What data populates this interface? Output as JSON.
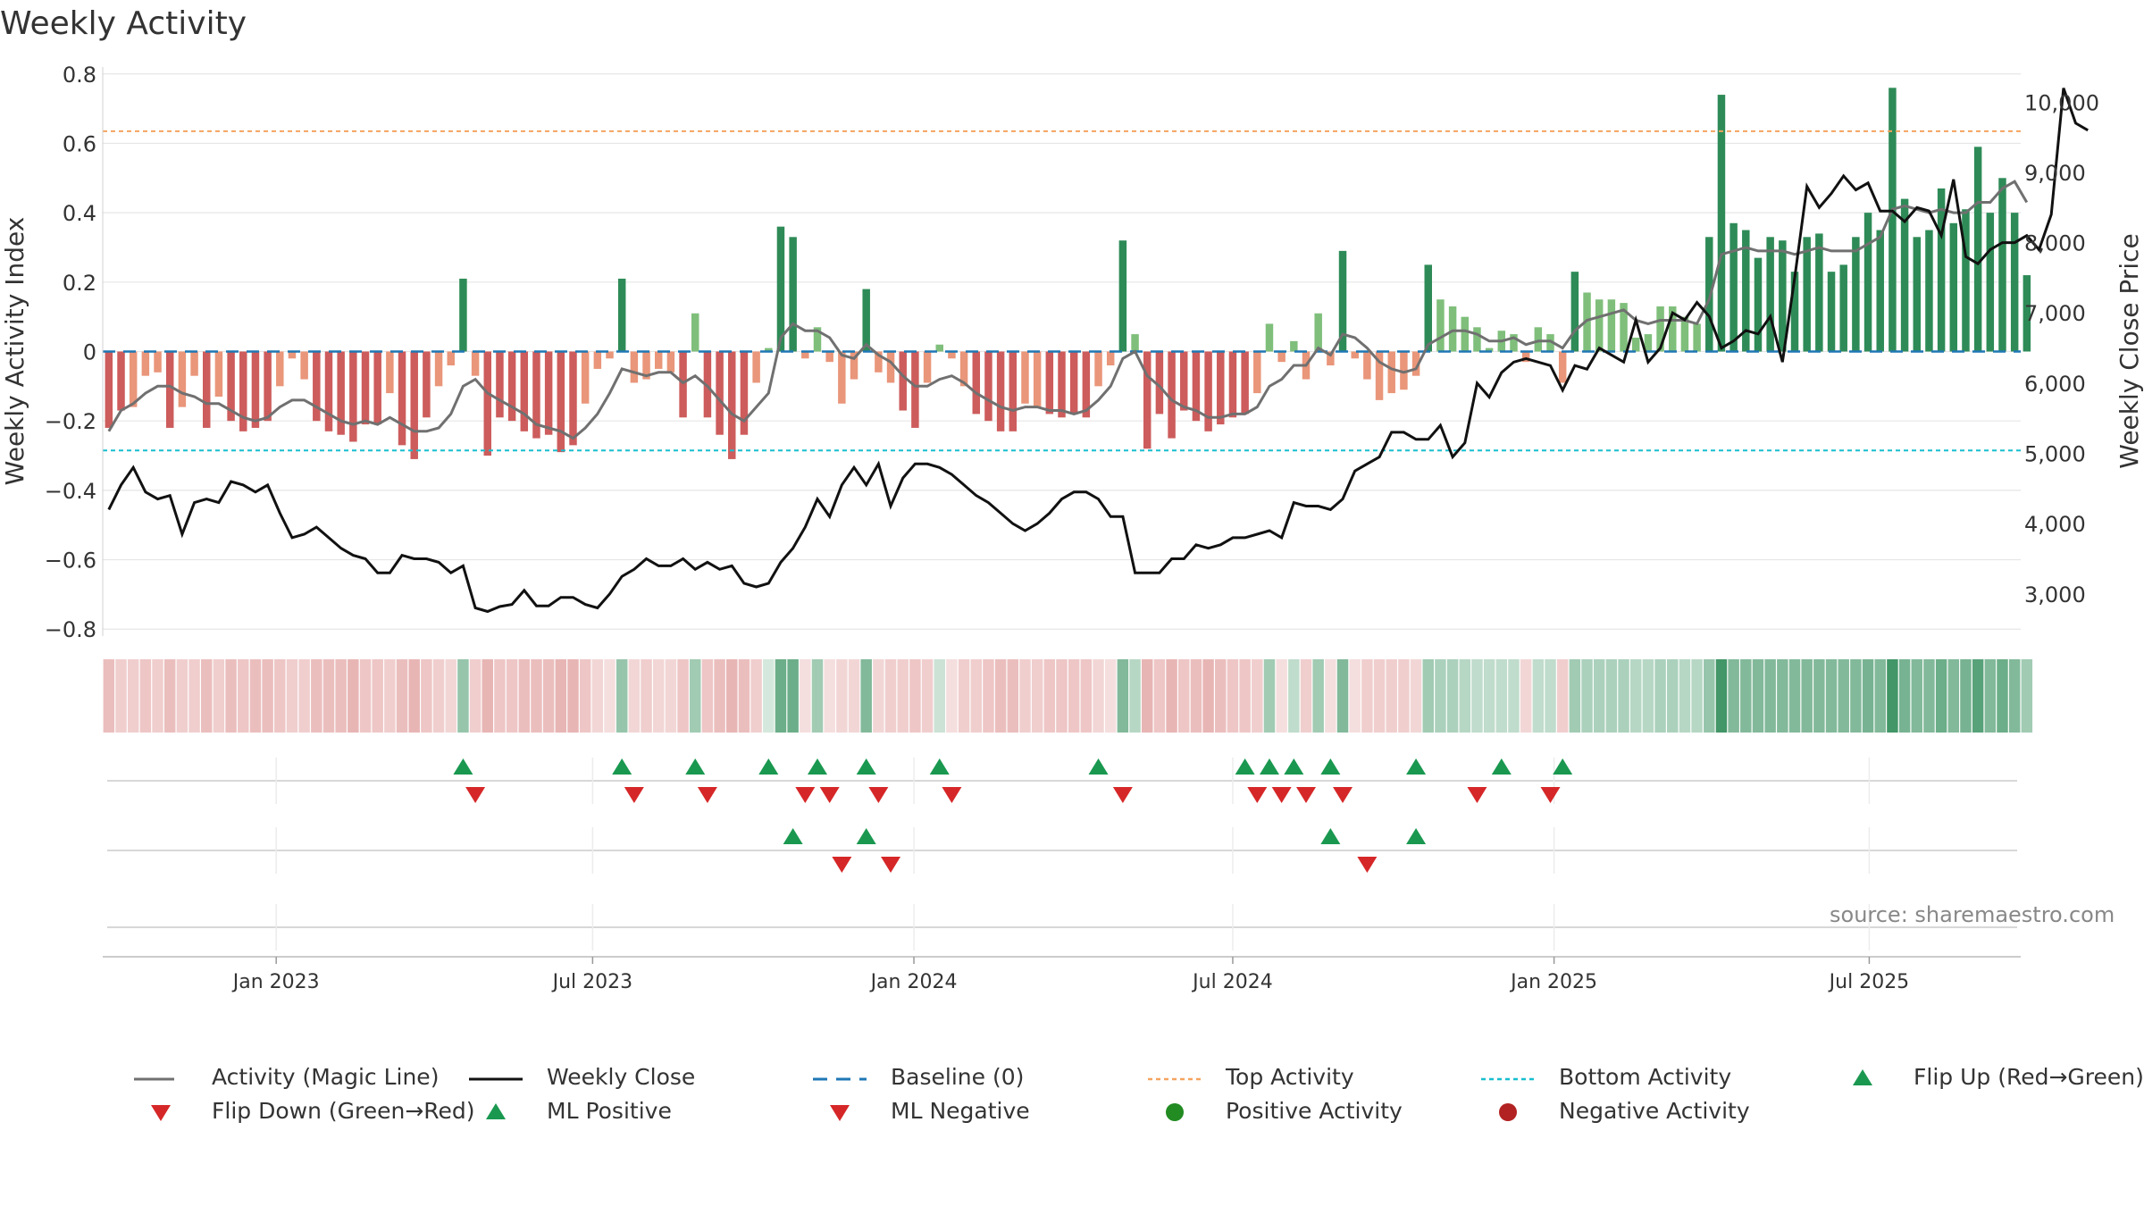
{
  "title": "Weekly Activity",
  "source": "source: sharemaestro.com",
  "colors": {
    "bar_pos_strong": "#2e8b57",
    "bar_pos_weak": "#7fbf7b",
    "bar_neg_strong": "#cd5c5c",
    "bar_neg_weak": "#e9967a",
    "magic_line": "#707070",
    "close_line": "#111111",
    "baseline": "#1f77b4",
    "top": "#f4a460",
    "bottom": "#17becf",
    "flip_up": "#1a9850",
    "flip_down": "#d62728",
    "pos_dot": "#228b22",
    "neg_dot": "#b22222"
  },
  "chart_data": {
    "type": "bar",
    "title": "Weekly Activity",
    "ylabel": "Weekly Activity Index",
    "y2label": "Weekly Close Price",
    "ylim": [
      -0.82,
      0.82
    ],
    "y2lim": [
      2400,
      10500
    ],
    "yticks": [
      "0.8",
      "0.6",
      "0.4",
      "0.2",
      "0",
      "−0.2",
      "−0.4",
      "−0.6",
      "−0.8"
    ],
    "ytick_values": [
      0.8,
      0.6,
      0.4,
      0.2,
      0,
      -0.2,
      -0.4,
      -0.6,
      -0.8
    ],
    "y2ticks": [
      "10,000",
      "9,000",
      "8,000",
      "7,000",
      "6,000",
      "5,000",
      "4,000",
      "3,000"
    ],
    "y2tick_values": [
      10000,
      9000,
      8000,
      7000,
      6000,
      5000,
      4000,
      3000
    ],
    "xlim_weeks": [
      0,
      157
    ],
    "xticks": [
      {
        "label": "Jan 2023",
        "week": 14.2
      },
      {
        "label": "Jul 2023",
        "week": 40.1
      },
      {
        "label": "Jan 2024",
        "week": 66.4
      },
      {
        "label": "Jul 2024",
        "week": 92.5
      },
      {
        "label": "Jan 2025",
        "week": 118.8
      },
      {
        "label": "Jul 2025",
        "week": 144.6
      }
    ],
    "top_activity": 0.635,
    "bottom_activity": -0.285,
    "baseline": 0,
    "activity": [
      -0.22,
      -0.17,
      -0.16,
      -0.07,
      -0.06,
      -0.22,
      -0.16,
      -0.07,
      -0.22,
      -0.13,
      -0.2,
      -0.23,
      -0.22,
      -0.2,
      -0.1,
      -0.02,
      -0.08,
      -0.2,
      -0.23,
      -0.24,
      -0.26,
      -0.21,
      -0.21,
      -0.12,
      -0.27,
      -0.31,
      -0.19,
      -0.1,
      -0.04,
      0.21,
      -0.07,
      -0.3,
      -0.19,
      -0.2,
      -0.23,
      -0.25,
      -0.24,
      -0.29,
      -0.27,
      -0.15,
      -0.05,
      -0.02,
      0.21,
      -0.09,
      -0.08,
      -0.05,
      -0.06,
      -0.19,
      0.11,
      -0.19,
      -0.24,
      -0.31,
      -0.24,
      -0.09,
      0.01,
      0.36,
      0.33,
      -0.02,
      0.07,
      -0.03,
      -0.15,
      -0.08,
      0.18,
      -0.06,
      -0.09,
      -0.17,
      -0.22,
      -0.09,
      0.02,
      -0.02,
      -0.1,
      -0.18,
      -0.2,
      -0.23,
      -0.23,
      -0.15,
      -0.16,
      -0.18,
      -0.19,
      -0.18,
      -0.19,
      -0.1,
      -0.04,
      0.32,
      0.05,
      -0.28,
      -0.18,
      -0.25,
      -0.17,
      -0.2,
      -0.23,
      -0.21,
      -0.19,
      -0.18,
      -0.12,
      0.08,
      -0.03,
      0.03,
      -0.08,
      0.11,
      -0.04,
      0.29,
      -0.02,
      -0.08,
      -0.14,
      -0.12,
      -0.11,
      -0.07,
      0.25,
      0.15,
      0.13,
      0.1,
      0.07,
      0.01,
      0.06,
      0.05,
      -0.03,
      0.07,
      0.05,
      -0.09,
      0.23,
      0.17,
      0.15,
      0.15,
      0.14,
      0.04,
      0.05,
      0.13,
      0.13,
      0.1,
      0.08,
      0.33,
      0.74,
      0.37,
      0.35,
      0.27,
      0.33,
      0.32,
      0.23,
      0.33,
      0.34,
      0.23,
      0.25,
      0.33,
      0.4,
      0.35,
      0.76,
      0.44,
      0.33,
      0.35,
      0.47,
      0.37,
      0.41,
      0.59,
      0.4,
      0.5,
      0.4,
      0.22
    ],
    "magic_line": [
      -0.23,
      -0.17,
      -0.15,
      -0.12,
      -0.1,
      -0.1,
      -0.12,
      -0.13,
      -0.15,
      -0.15,
      -0.17,
      -0.19,
      -0.2,
      -0.19,
      -0.16,
      -0.14,
      -0.14,
      -0.16,
      -0.18,
      -0.2,
      -0.21,
      -0.2,
      -0.21,
      -0.19,
      -0.21,
      -0.23,
      -0.23,
      -0.22,
      -0.18,
      -0.1,
      -0.08,
      -0.12,
      -0.14,
      -0.16,
      -0.18,
      -0.21,
      -0.22,
      -0.23,
      -0.25,
      -0.22,
      -0.18,
      -0.12,
      -0.05,
      -0.06,
      -0.07,
      -0.06,
      -0.06,
      -0.09,
      -0.07,
      -0.1,
      -0.14,
      -0.18,
      -0.2,
      -0.16,
      -0.12,
      0.04,
      0.08,
      0.06,
      0.06,
      0.04,
      -0.01,
      -0.02,
      0.02,
      -0.01,
      -0.03,
      -0.07,
      -0.1,
      -0.1,
      -0.08,
      -0.07,
      -0.09,
      -0.12,
      -0.14,
      -0.16,
      -0.17,
      -0.16,
      -0.16,
      -0.17,
      -0.17,
      -0.18,
      -0.17,
      -0.14,
      -0.1,
      -0.02,
      0.0,
      -0.07,
      -0.1,
      -0.14,
      -0.16,
      -0.17,
      -0.19,
      -0.19,
      -0.18,
      -0.18,
      -0.16,
      -0.1,
      -0.08,
      -0.04,
      -0.04,
      0.01,
      -0.01,
      0.05,
      0.04,
      0.01,
      -0.03,
      -0.05,
      -0.06,
      -0.05,
      0.02,
      0.04,
      0.06,
      0.06,
      0.05,
      0.03,
      0.03,
      0.04,
      0.02,
      0.03,
      0.03,
      0.01,
      0.06,
      0.09,
      0.1,
      0.11,
      0.12,
      0.09,
      0.08,
      0.09,
      0.09,
      0.09,
      0.08,
      0.15,
      0.28,
      0.29,
      0.3,
      0.29,
      0.29,
      0.29,
      0.28,
      0.29,
      0.3,
      0.29,
      0.29,
      0.29,
      0.31,
      0.33,
      0.41,
      0.42,
      0.41,
      0.4,
      0.41,
      0.4,
      0.4,
      0.43,
      0.43,
      0.47,
      0.49,
      0.43
    ],
    "weekly_close": [
      4200,
      4550,
      4800,
      4450,
      4350,
      4400,
      3850,
      4300,
      4350,
      4300,
      4600,
      4550,
      4450,
      4550,
      4150,
      3800,
      3850,
      3950,
      3800,
      3650,
      3550,
      3500,
      3300,
      3300,
      3550,
      3500,
      3500,
      3450,
      3300,
      3400,
      2800,
      2750,
      2820,
      2850,
      3050,
      2830,
      2830,
      2950,
      2950,
      2850,
      2800,
      3000,
      3250,
      3350,
      3500,
      3400,
      3400,
      3500,
      3350,
      3450,
      3350,
      3400,
      3150,
      3100,
      3150,
      3450,
      3650,
      3950,
      4350,
      4100,
      4550,
      4800,
      4550,
      4850,
      4250,
      4650,
      4850,
      4850,
      4800,
      4700,
      4550,
      4400,
      4300,
      4150,
      4000,
      3900,
      4000,
      4150,
      4350,
      4450,
      4450,
      4350,
      4100,
      4100,
      3300,
      3300,
      3300,
      3500,
      3500,
      3700,
      3650,
      3700,
      3800,
      3800,
      3850,
      3900,
      3800,
      4300,
      4250,
      4250,
      4200,
      4350,
      4750,
      4850,
      4950,
      5300,
      5300,
      5200,
      5200,
      5400,
      4950,
      5150,
      6000,
      5800,
      6150,
      6300,
      6350,
      6300,
      6250,
      5900,
      6250,
      6200,
      6500,
      6400,
      6300,
      6900,
      6300,
      6500,
      7000,
      6900,
      7150,
      6950,
      6500,
      6600,
      6750,
      6700,
      6950,
      6300,
      7500,
      8800,
      8500,
      8700,
      8950,
      8750,
      8850,
      8450,
      8450,
      8300,
      8500,
      8450,
      8100,
      8900,
      7800,
      7700,
      7900,
      8000,
      8000,
      8100,
      7900,
      8400,
      10200,
      9700,
      9600
    ],
    "strip_alpha": [
      0.4,
      0.3,
      0.3,
      0.35,
      0.3,
      0.4,
      0.3,
      0.3,
      0.4,
      0.3,
      0.4,
      0.35,
      0.4,
      0.4,
      0.35,
      0.3,
      0.3,
      0.4,
      0.4,
      0.4,
      0.45,
      0.35,
      0.35,
      0.3,
      0.4,
      0.45,
      0.35,
      0.3,
      0.25,
      0.5,
      0.3,
      0.45,
      0.35,
      0.35,
      0.4,
      0.4,
      0.4,
      0.45,
      0.45,
      0.35,
      0.25,
      0.2,
      0.5,
      0.25,
      0.3,
      0.25,
      0.25,
      0.35,
      0.45,
      0.35,
      0.4,
      0.45,
      0.4,
      0.3,
      0.2,
      0.7,
      0.7,
      0.2,
      0.45,
      0.2,
      0.25,
      0.25,
      0.6,
      0.25,
      0.3,
      0.3,
      0.35,
      0.3,
      0.25,
      0.2,
      0.3,
      0.3,
      0.35,
      0.4,
      0.4,
      0.3,
      0.3,
      0.35,
      0.35,
      0.35,
      0.35,
      0.25,
      0.2,
      0.6,
      0.35,
      0.45,
      0.35,
      0.45,
      0.35,
      0.4,
      0.45,
      0.4,
      0.35,
      0.35,
      0.3,
      0.45,
      0.2,
      0.3,
      0.3,
      0.45,
      0.2,
      0.6,
      0.2,
      0.3,
      0.3,
      0.3,
      0.3,
      0.25,
      0.45,
      0.4,
      0.4,
      0.35,
      0.3,
      0.3,
      0.3,
      0.3,
      0.25,
      0.3,
      0.3,
      0.3,
      0.45,
      0.4,
      0.4,
      0.4,
      0.4,
      0.35,
      0.35,
      0.4,
      0.4,
      0.35,
      0.35,
      0.5,
      0.9,
      0.6,
      0.6,
      0.6,
      0.6,
      0.6,
      0.6,
      0.6,
      0.6,
      0.6,
      0.6,
      0.6,
      0.65,
      0.6,
      0.9,
      0.65,
      0.6,
      0.6,
      0.7,
      0.6,
      0.65,
      0.8,
      0.6,
      0.7,
      0.6,
      0.45
    ],
    "flip_up_weeks": [
      29,
      42,
      48,
      54,
      58,
      62,
      68,
      81,
      93,
      95,
      97,
      100,
      107,
      114,
      119
    ],
    "flip_down_weeks": [
      30,
      43,
      49,
      57,
      59,
      63,
      69,
      83,
      94,
      96,
      98,
      101,
      112,
      118
    ],
    "ml_positive_weeks": [
      56,
      62,
      100,
      107
    ],
    "ml_negative_weeks": [
      60,
      64,
      103
    ]
  },
  "axis_labels": {
    "left": "Weekly Activity Index",
    "right": "Weekly Close Price"
  },
  "legend": [
    {
      "label": "Activity (Magic Line)",
      "icon": "line-gray"
    },
    {
      "label": "Weekly Close",
      "icon": "line-black"
    },
    {
      "label": "Baseline (0)",
      "icon": "dash-blue"
    },
    {
      "label": "Top Activity",
      "icon": "dot-orange"
    },
    {
      "label": "Bottom Activity",
      "icon": "dot-cyan"
    },
    {
      "label": "Flip Up (Red→Green)",
      "icon": "triangle-up-green"
    },
    {
      "label": "Flip Down (Green→Red)",
      "icon": "triangle-down-red"
    },
    {
      "label": "ML Positive",
      "icon": "triangle-up-green"
    },
    {
      "label": "ML Negative",
      "icon": "triangle-down-red"
    },
    {
      "label": "Positive Activity",
      "icon": "circle-green"
    },
    {
      "label": "Negative Activity",
      "icon": "circle-red"
    }
  ]
}
